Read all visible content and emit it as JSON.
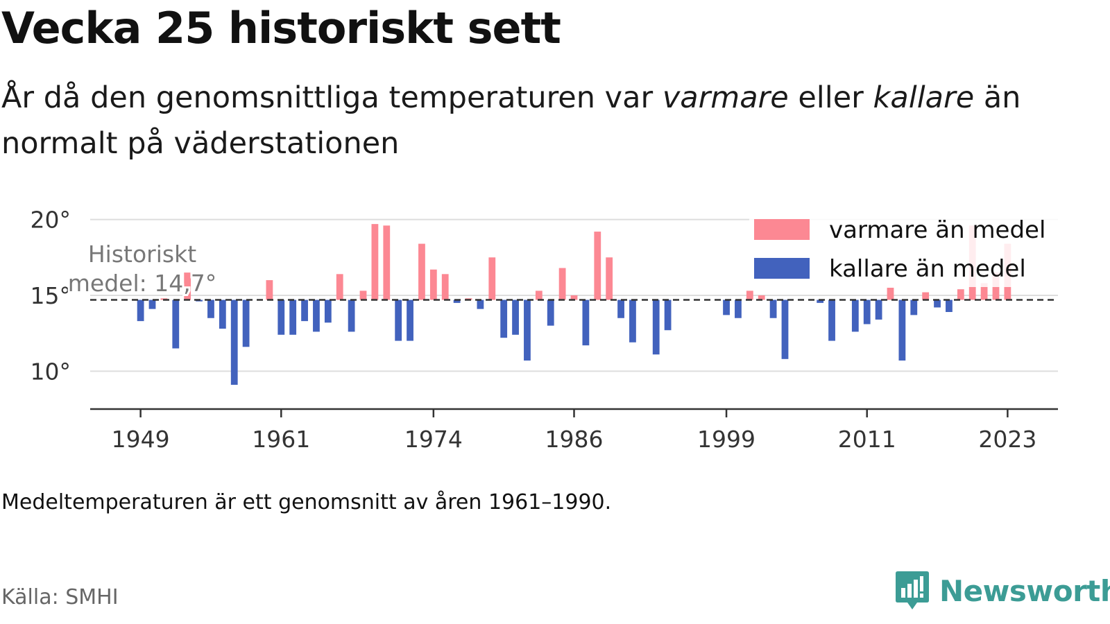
{
  "header": {
    "title": "Vecka 25 historiskt sett",
    "subtitle_part1": "År då den genomsnittliga temperaturen var ",
    "subtitle_em1": "varmare",
    "subtitle_part2": " eller ",
    "subtitle_em2": "kallare",
    "subtitle_part3": " än normalt på väderstationen"
  },
  "footer": {
    "note": "Medeltemperaturen är ett genomsnitt av åren 1961–1990.",
    "source": "Källa: SMHI",
    "brand": "Newsworthy"
  },
  "colors": {
    "warm": "#fc8893",
    "cold": "#4262bd",
    "brand": "#3c9c95"
  },
  "chart_data": {
    "type": "bar",
    "baseline": 14.7,
    "baseline_label_line1": "Historiskt",
    "baseline_label_line2": "medel: 14,7°",
    "ylim": [
      7.5,
      20.3
    ],
    "yticks": [
      10,
      15,
      20
    ],
    "ytick_labels": [
      "10°",
      "15°",
      "20°"
    ],
    "xticks": [
      1949,
      1961,
      1974,
      1986,
      1999,
      2011,
      2023
    ],
    "xlim": [
      1944.7,
      2027.3
    ],
    "grid": true,
    "legend_position": "top-right",
    "legend": [
      {
        "label": "varmare än medel",
        "color": "#fc8893"
      },
      {
        "label": "kallare än medel",
        "color": "#4262bd"
      }
    ],
    "years": [
      1949,
      1950,
      1951,
      1952,
      1953,
      1954,
      1955,
      1956,
      1957,
      1958,
      1959,
      1960,
      1961,
      1962,
      1963,
      1964,
      1965,
      1966,
      1967,
      1968,
      1969,
      1970,
      1971,
      1972,
      1973,
      1974,
      1975,
      1976,
      1977,
      1978,
      1979,
      1980,
      1981,
      1982,
      1983,
      1984,
      1985,
      1986,
      1987,
      1988,
      1989,
      1990,
      1991,
      1992,
      1993,
      1994,
      1995,
      1996,
      1997,
      1998,
      1999,
      2000,
      2001,
      2002,
      2003,
      2004,
      2005,
      2006,
      2007,
      2008,
      2009,
      2010,
      2011,
      2012,
      2013,
      2014,
      2015,
      2016,
      2017,
      2018,
      2019,
      2020,
      2021,
      2022,
      2023
    ],
    "values": [
      13.3,
      14.1,
      14.8,
      11.5,
      16.5,
      14.6,
      13.5,
      12.8,
      9.1,
      11.6,
      14.7,
      16.0,
      12.4,
      12.4,
      13.3,
      12.6,
      13.2,
      16.4,
      12.6,
      15.3,
      19.7,
      19.6,
      12.0,
      12.0,
      18.4,
      16.7,
      16.4,
      14.5,
      14.8,
      14.1,
      17.5,
      12.2,
      12.4,
      10.7,
      15.3,
      13.0,
      16.8,
      15.0,
      11.7,
      19.2,
      17.5,
      13.5,
      11.9,
      14.7,
      11.1,
      12.7,
      14.7,
      14.7,
      14.7,
      14.7,
      13.7,
      13.5,
      15.3,
      15.0,
      13.5,
      10.8,
      14.7,
      14.7,
      14.5,
      12.0,
      14.7,
      12.6,
      13.1,
      13.4,
      15.5,
      10.7,
      13.7,
      15.2,
      14.2,
      13.9,
      15.4,
      19.6,
      15.8,
      16.5,
      18.4
    ]
  }
}
